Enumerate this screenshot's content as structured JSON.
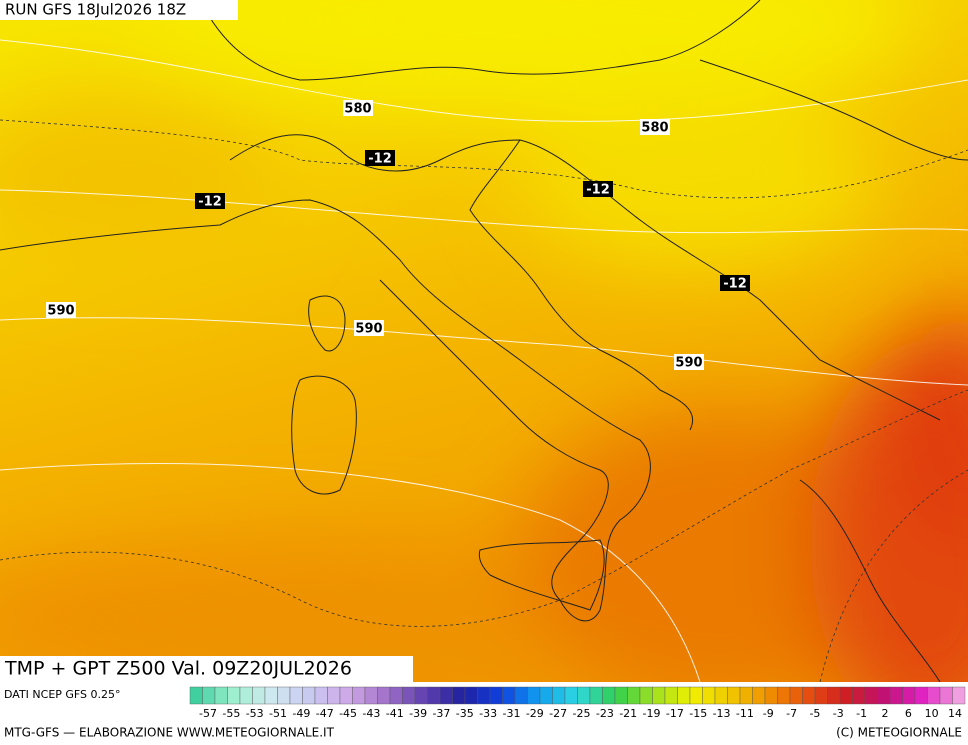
{
  "header": {
    "run": "RUN GFS 18Jul2026 18Z"
  },
  "map": {
    "contour_labels": [
      "580",
      "580",
      "590",
      "590",
      "590"
    ],
    "isotherm_labels": [
      "-12",
      "-12",
      "-12",
      "-12"
    ]
  },
  "title": "TMP + GPT Z500 Val. 09Z20JUL2026",
  "colorbar": {
    "source": "DATI NCEP GFS 0.25°",
    "labels": [
      -57,
      -55,
      -53,
      -51,
      -49,
      -47,
      -45,
      -43,
      -41,
      -39,
      -37,
      -35,
      -33,
      -31,
      -29,
      -27,
      -25,
      -23,
      -21,
      -19,
      -17,
      -15,
      -13,
      -11,
      -9,
      -7,
      -5,
      -3,
      -1,
      2,
      6,
      10,
      14
    ]
  },
  "footer": {
    "left": "MTG-GFS — ELABORAZIONE  WWW.METEOGIORNALE.IT",
    "right": "(C) METEOGIORNALE"
  }
}
